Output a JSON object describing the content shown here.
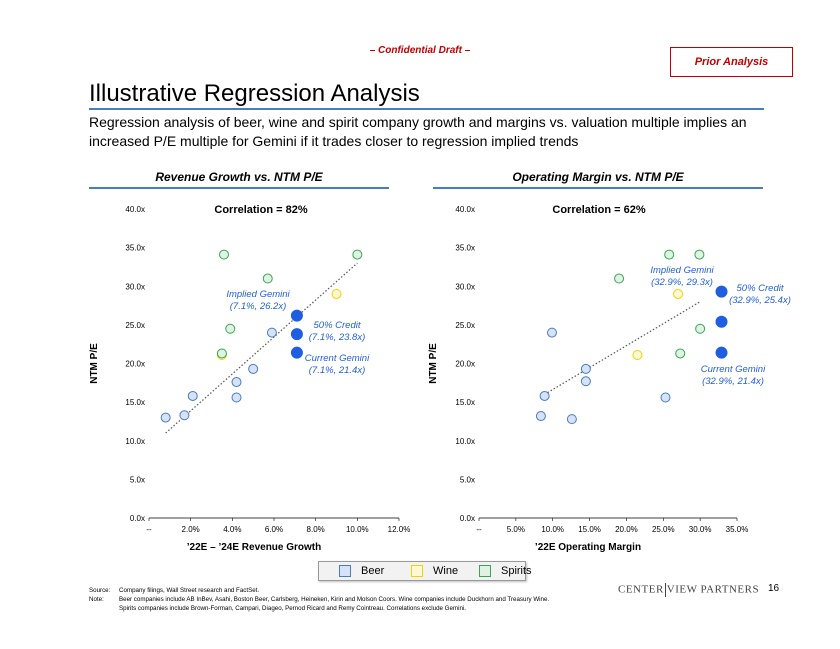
{
  "header": {
    "draft_label": "– Confidential Draft –",
    "prior_label": "Prior Analysis",
    "title": "Illustrative Regression Analysis",
    "subtitle": "Regression analysis of beer, wine and spirit company growth and margins vs. valuation multiple implies an increased P/E multiple for Gemini if it trades closer to regression implied trends"
  },
  "colors": {
    "accent": "#4a7cc2",
    "beer": "#4a7cc2",
    "beer_fill": "#d6e2f5",
    "wine": "#f2d300",
    "wine_fill": "#fdf8d6",
    "spirits": "#3aa655",
    "spirits_fill": "#dff2e3",
    "gemini": "#1f5ee0",
    "draft": "#c00000"
  },
  "chart_data": [
    {
      "type": "scatter",
      "title": "Revenue Growth vs. NTM P/E",
      "annotation": "Correlation = 82%",
      "xlabel": "’22E – ’24E Revenue Growth",
      "ylabel": "NTM P/E",
      "xlim": [
        0,
        12
      ],
      "ylim": [
        0,
        40
      ],
      "x_ticks": [
        "--",
        "2.0%",
        "4.0%",
        "6.0%",
        "8.0%",
        "10.0%",
        "12.0%"
      ],
      "y_ticks": [
        "0.0x",
        "5.0x",
        "10.0x",
        "15.0x",
        "20.0x",
        "25.0x",
        "30.0x",
        "35.0x",
        "40.0x"
      ],
      "series": [
        {
          "name": "Beer",
          "points": [
            [
              0.8,
              13.0
            ],
            [
              1.7,
              13.3
            ],
            [
              2.1,
              15.8
            ],
            [
              4.2,
              15.6
            ],
            [
              4.2,
              17.6
            ],
            [
              5.0,
              19.3
            ],
            [
              5.9,
              24.0
            ]
          ]
        },
        {
          "name": "Wine",
          "points": [
            [
              3.5,
              21.1
            ],
            [
              9.0,
              29.0
            ]
          ]
        },
        {
          "name": "Spirits",
          "points": [
            [
              3.5,
              21.3
            ],
            [
              3.6,
              34.1
            ],
            [
              3.9,
              24.5
            ],
            [
              5.7,
              31.0
            ],
            [
              10.0,
              34.1
            ]
          ]
        }
      ],
      "trendline": [
        [
          0.8,
          11.0
        ],
        [
          10.0,
          33.0
        ]
      ],
      "gemini": [
        {
          "label": "Current Gemini",
          "detail": "(7.1%, 21.4x)",
          "point": [
            7.1,
            21.4
          ]
        },
        {
          "label": "50% Credit",
          "detail": "(7.1%, 23.8x)",
          "point": [
            7.1,
            23.8
          ]
        },
        {
          "label": "Implied Gemini",
          "detail": "(7.1%, 26.2x)",
          "point": [
            7.1,
            26.2
          ]
        }
      ]
    },
    {
      "type": "scatter",
      "title": "Operating Margin vs. NTM P/E",
      "annotation": "Correlation = 62%",
      "xlabel": "’22E Operating Margin",
      "ylabel": "NTM P/E",
      "xlim": [
        0,
        35
      ],
      "ylim": [
        0,
        40
      ],
      "x_ticks": [
        "--",
        "5.0%",
        "10.0%",
        "15.0%",
        "20.0%",
        "25.0%",
        "30.0%",
        "35.0%"
      ],
      "y_ticks": [
        "0.0x",
        "5.0x",
        "10.0x",
        "15.0x",
        "20.0x",
        "25.0x",
        "30.0x",
        "35.0x",
        "40.0x"
      ],
      "series": [
        {
          "name": "Beer",
          "points": [
            [
              8.4,
              13.2
            ],
            [
              8.9,
              15.8
            ],
            [
              9.9,
              24.0
            ],
            [
              12.6,
              12.8
            ],
            [
              14.5,
              17.7
            ],
            [
              14.5,
              19.3
            ],
            [
              25.3,
              15.6
            ]
          ]
        },
        {
          "name": "Wine",
          "points": [
            [
              21.5,
              21.1
            ],
            [
              27.0,
              29.0
            ]
          ]
        },
        {
          "name": "Spirits",
          "points": [
            [
              19.0,
              31.0
            ],
            [
              25.8,
              34.1
            ],
            [
              27.3,
              21.3
            ],
            [
              29.9,
              34.1
            ],
            [
              30.0,
              24.5
            ]
          ]
        }
      ],
      "trendline": [
        [
          8.9,
          16.0
        ],
        [
          30.0,
          28.0
        ]
      ],
      "gemini": [
        {
          "label": "Current Gemini",
          "detail": "(32.9%, 21.4x)",
          "point": [
            32.9,
            21.4
          ]
        },
        {
          "label": "50% Credit",
          "detail": "(32.9%, 25.4x)",
          "point": [
            32.9,
            25.4
          ]
        },
        {
          "label": "Implied Gemini",
          "detail": "(32.9%, 29.3x)",
          "point": [
            32.9,
            29.3
          ]
        }
      ]
    }
  ],
  "legend": {
    "beer": "Beer",
    "wine": "Wine",
    "spirits": "Spirits"
  },
  "footer": {
    "source_label": "Source:",
    "source_text": "Company filings, Wall Street research and FactSet.",
    "note_label": "Note:",
    "note_line1": "Beer companies include AB InBev, Asahi, Boston Beer, Carlsberg, Heineken, Kirin and Molson Coors. Wine companies include Duckhorn and Treasury Wine.",
    "note_line2": "Spirits companies include Brown-Forman, Campari, Diageo, Pernod Ricard and Remy Cointreau. Correlations exclude Gemini.",
    "logo_left": "CENTER",
    "logo_right": "VIEW PARTNERS",
    "page_number": "16"
  }
}
